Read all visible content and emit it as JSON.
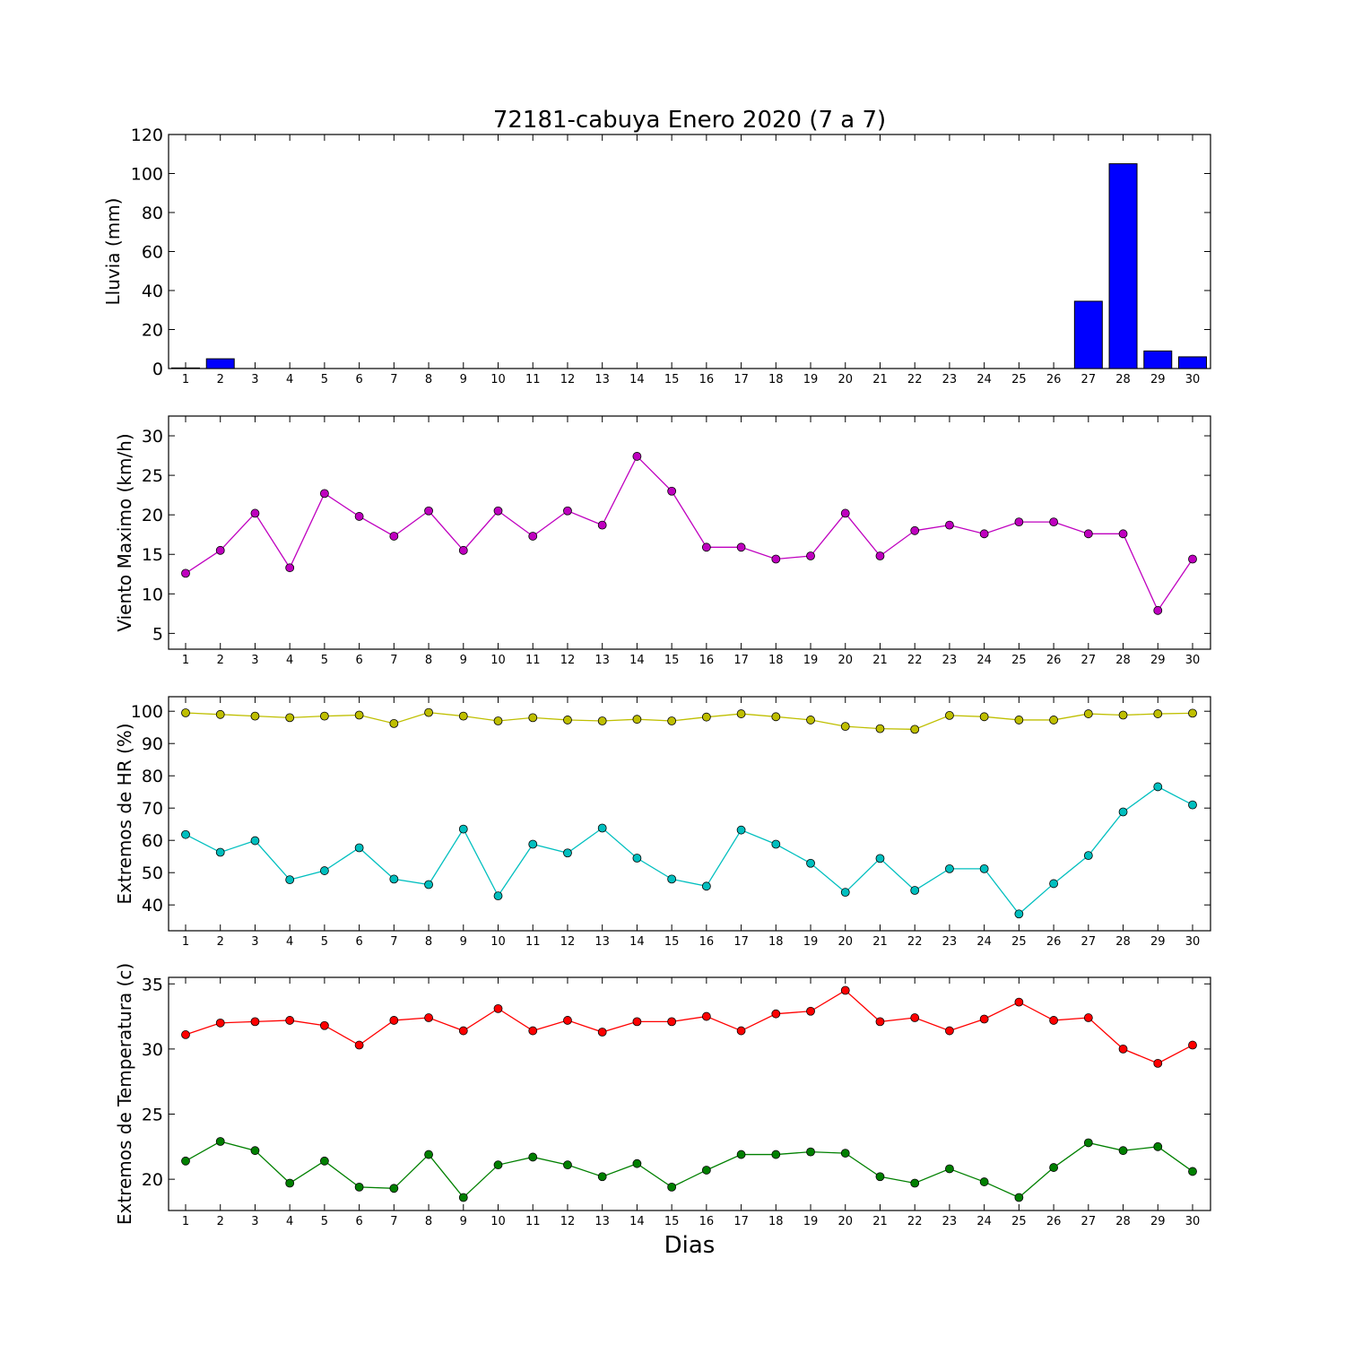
{
  "chart_data": [
    {
      "type": "bar",
      "title": "72181-cabuya Enero 2020  (7 a 7)",
      "ylabel": "Lluvia (mm)",
      "ylim": [
        0,
        120
      ],
      "yticks": [
        0,
        20,
        40,
        60,
        80,
        100,
        120
      ],
      "categories": [
        "1",
        "2",
        "3",
        "4",
        "5",
        "6",
        "7",
        "8",
        "9",
        "10",
        "11",
        "12",
        "13",
        "14",
        "15",
        "16",
        "17",
        "18",
        "19",
        "20",
        "21",
        "22",
        "23",
        "24",
        "25",
        "26",
        "27",
        "28",
        "29",
        "30"
      ],
      "series": [
        {
          "color": "#0000ff",
          "values": [
            0.3,
            5,
            0,
            0,
            0,
            0,
            0,
            0,
            0,
            0,
            0,
            0,
            0,
            0,
            0,
            0,
            0,
            0,
            0,
            0,
            0,
            0,
            0,
            0,
            0,
            0,
            34.5,
            105,
            9,
            6
          ]
        }
      ]
    },
    {
      "type": "line",
      "ylabel": "Viento Maximo (km/h)",
      "ylim": [
        3,
        32.5
      ],
      "yticks": [
        5,
        10,
        15,
        20,
        25,
        30
      ],
      "categories": [
        "1",
        "2",
        "3",
        "4",
        "5",
        "6",
        "7",
        "8",
        "9",
        "10",
        "11",
        "12",
        "13",
        "14",
        "15",
        "16",
        "17",
        "18",
        "19",
        "20",
        "21",
        "22",
        "23",
        "24",
        "25",
        "26",
        "27",
        "28",
        "29",
        "30"
      ],
      "series": [
        {
          "color": "#bf00bf",
          "values": [
            12.6,
            15.5,
            20.2,
            13.3,
            22.7,
            19.8,
            17.3,
            20.5,
            15.5,
            20.5,
            17.3,
            20.5,
            18.7,
            27.4,
            23.0,
            15.9,
            15.9,
            14.4,
            14.8,
            20.2,
            14.8,
            18.0,
            18.7,
            17.6,
            19.1,
            19.1,
            17.6,
            17.6,
            7.9,
            14.4
          ]
        }
      ]
    },
    {
      "type": "line",
      "ylabel": "Extremos de HR (%)",
      "ylim": [
        32,
        104.5
      ],
      "yticks": [
        40,
        50,
        60,
        70,
        80,
        90,
        100
      ],
      "categories": [
        "1",
        "2",
        "3",
        "4",
        "5",
        "6",
        "7",
        "8",
        "9",
        "10",
        "11",
        "12",
        "13",
        "14",
        "15",
        "16",
        "17",
        "18",
        "19",
        "20",
        "21",
        "22",
        "23",
        "24",
        "25",
        "26",
        "27",
        "28",
        "29",
        "30"
      ],
      "series": [
        {
          "color": "#bfbf00",
          "values": [
            99.5,
            99.0,
            98.5,
            98.0,
            98.5,
            98.8,
            96.2,
            99.6,
            98.5,
            97.0,
            98.0,
            97.3,
            97.0,
            97.5,
            97.0,
            98.2,
            99.2,
            98.3,
            97.3,
            95.3,
            94.6,
            94.4,
            98.7,
            98.3,
            97.3,
            97.3,
            99.2,
            98.8,
            99.2,
            99.4
          ]
        },
        {
          "color": "#00bfbf",
          "values": [
            61.8,
            56.3,
            59.9,
            47.8,
            50.6,
            57.7,
            48.0,
            46.3,
            63.5,
            42.8,
            58.8,
            56.1,
            63.8,
            54.5,
            48.0,
            45.8,
            63.2,
            58.8,
            52.9,
            43.9,
            54.4,
            44.5,
            51.2,
            51.2,
            37.2,
            46.6,
            55.3,
            68.8,
            76.6,
            71.0
          ]
        }
      ]
    },
    {
      "type": "line",
      "ylabel": "Extremos de Temperatura (c)",
      "xlabel": "Dias",
      "ylim": [
        17.6,
        35.5
      ],
      "yticks": [
        20,
        25,
        30,
        35
      ],
      "categories": [
        "1",
        "2",
        "3",
        "4",
        "5",
        "6",
        "7",
        "8",
        "9",
        "10",
        "11",
        "12",
        "13",
        "14",
        "15",
        "16",
        "17",
        "18",
        "19",
        "20",
        "21",
        "22",
        "23",
        "24",
        "25",
        "26",
        "27",
        "28",
        "29",
        "30"
      ],
      "series": [
        {
          "color": "#ff0000",
          "values": [
            31.1,
            32.0,
            32.1,
            32.2,
            31.8,
            30.3,
            32.2,
            32.4,
            31.4,
            33.1,
            31.4,
            32.2,
            31.3,
            32.1,
            32.1,
            32.5,
            31.4,
            32.7,
            32.9,
            34.5,
            32.1,
            32.4,
            31.4,
            32.3,
            33.6,
            32.2,
            32.4,
            30.0,
            28.9,
            30.3
          ]
        },
        {
          "color": "#008000",
          "values": [
            21.4,
            22.9,
            22.2,
            19.7,
            21.4,
            19.4,
            19.3,
            21.9,
            18.6,
            21.1,
            21.7,
            21.1,
            20.2,
            21.2,
            19.4,
            20.7,
            21.9,
            21.9,
            22.1,
            22.0,
            20.2,
            19.7,
            20.8,
            19.8,
            18.6,
            20.9,
            22.8,
            22.2,
            22.5,
            20.6
          ]
        }
      ]
    }
  ]
}
